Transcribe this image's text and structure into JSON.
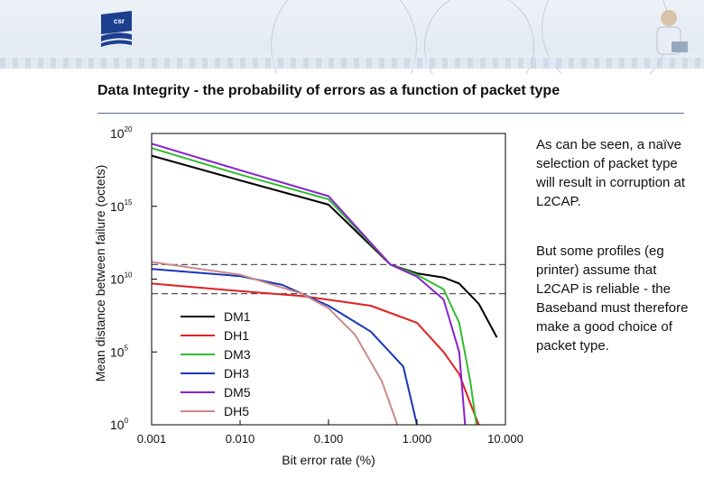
{
  "slide": {
    "title": "Data Integrity - the probability of errors as a function of packet type",
    "logo_text": "csr",
    "paragraph1": "As can be seen, a naïve selection of packet type will result in corruption at L2CAP.",
    "paragraph2": "But some profiles (eg printer) assume that L2CAP is reliable - the Baseband must therefore make a good choice of packet type."
  },
  "chart_data": {
    "type": "line",
    "title": "",
    "xlabel": "Bit error rate (%)",
    "ylabel": "Mean distance between failure (octets)",
    "xscale": "log",
    "yscale": "log",
    "xlim": [
      0.001,
      10
    ],
    "ylim": [
      1,
      1e+20
    ],
    "x_ticks": [
      "0.001",
      "0.010",
      "0.100",
      "1.000",
      "10.000"
    ],
    "y_ticks": [
      {
        "base": "10",
        "exp": "0"
      },
      {
        "base": "10",
        "exp": "5"
      },
      {
        "base": "10",
        "exp": "10"
      },
      {
        "base": "10",
        "exp": "15"
      },
      {
        "base": "10",
        "exp": "20"
      }
    ],
    "reference_lines_log10_y": [
      11,
      9
    ],
    "legend_position": "lower-left",
    "series": [
      {
        "name": "DM1",
        "color": "#000000",
        "points": [
          [
            0.001,
            3e+18
          ],
          [
            0.01,
            6e+16
          ],
          [
            0.1,
            1300000000000000.0
          ],
          [
            0.5,
            100000000000.0
          ],
          [
            1,
            25000000000.0
          ],
          [
            2,
            13000000000.0
          ],
          [
            3,
            5000000000.0
          ],
          [
            5,
            200000000.0
          ],
          [
            8,
            1000000.0
          ]
        ]
      },
      {
        "name": "DH1",
        "color": "#e02020",
        "points": [
          [
            0.001,
            5000000000.0
          ],
          [
            0.01,
            1500000000.0
          ],
          [
            0.05,
            700000000.0
          ],
          [
            0.3,
            150000000.0
          ],
          [
            1,
            10000000.0
          ],
          [
            2,
            100000.0
          ],
          [
            3,
            3000.0
          ],
          [
            4,
            30
          ],
          [
            5,
            1
          ]
        ]
      },
      {
        "name": "DM3",
        "color": "#33bb33",
        "points": [
          [
            0.001,
            1e+19
          ],
          [
            0.01,
            1.5e+17
          ],
          [
            0.1,
            3000000000000000.0
          ],
          [
            0.5,
            100000000000.0
          ],
          [
            1,
            20000000000.0
          ],
          [
            2,
            2000000000.0
          ],
          [
            3,
            10000000.0
          ],
          [
            4,
            1000.0
          ],
          [
            4.7,
            1
          ]
        ]
      },
      {
        "name": "DH3",
        "color": "#1a35b8",
        "points": [
          [
            0.001,
            50000000000.0
          ],
          [
            0.01,
            16000000000.0
          ],
          [
            0.03,
            4000000000.0
          ],
          [
            0.1,
            150000000.0
          ],
          [
            0.3,
            2500000.0
          ],
          [
            0.7,
            10000.0
          ],
          [
            1,
            1
          ]
        ]
      },
      {
        "name": "DM5",
        "color": "#8822cc",
        "points": [
          [
            0.001,
            2e+19
          ],
          [
            0.01,
            3e+17
          ],
          [
            0.1,
            5000000000000000.0
          ],
          [
            0.5,
            100000000000.0
          ],
          [
            1,
            15000000000.0
          ],
          [
            2,
            400000000.0
          ],
          [
            3,
            100000.0
          ],
          [
            3.5,
            1
          ]
        ]
      },
      {
        "name": "DH5",
        "color": "#c98a8a",
        "points": [
          [
            0.001,
            150000000000.0
          ],
          [
            0.01,
            20000000000.0
          ],
          [
            0.05,
            1000000000.0
          ],
          [
            0.1,
            100000000.0
          ],
          [
            0.2,
            1500000.0
          ],
          [
            0.4,
            1000.0
          ],
          [
            0.6,
            1
          ]
        ]
      }
    ]
  }
}
